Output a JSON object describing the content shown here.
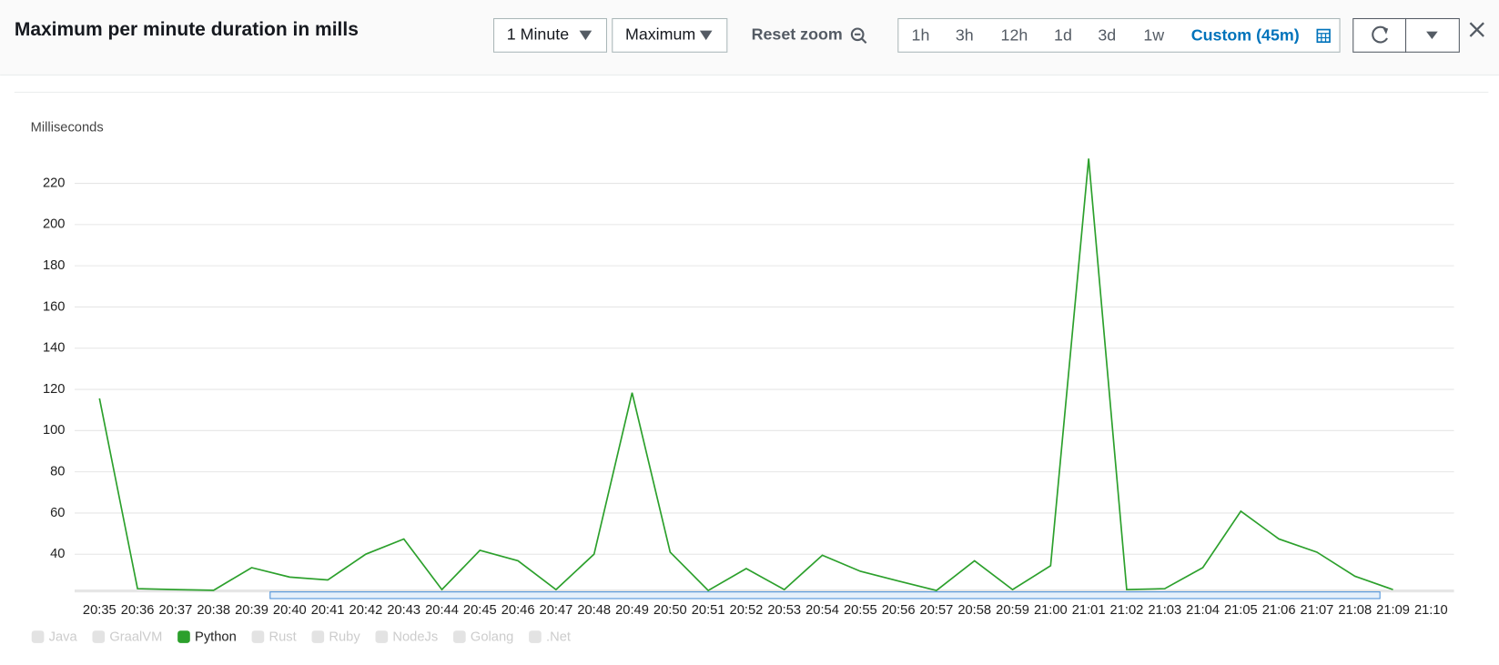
{
  "toolbar": {
    "period": "1 Minute",
    "statistic": "Maximum",
    "reset_zoom": "Reset zoom",
    "ranges": [
      "1h",
      "3h",
      "12h",
      "1d",
      "3d",
      "1w"
    ],
    "custom_range": "Custom (45m)"
  },
  "chart_data": {
    "type": "line",
    "title": "Maximum per minute duration in mills",
    "y_label": "Milliseconds",
    "categories": [
      "20:35",
      "20:36",
      "20:37",
      "20:38",
      "20:39",
      "20:40",
      "20:41",
      "20:42",
      "20:43",
      "20:44",
      "20:45",
      "20:46",
      "20:47",
      "20:48",
      "20:49",
      "20:50",
      "20:51",
      "20:52",
      "20:53",
      "20:54",
      "20:55",
      "20:56",
      "20:57",
      "20:58",
      "20:59",
      "21:00",
      "21:01",
      "21:02",
      "21:03",
      "21:04",
      "21:05",
      "21:06",
      "21:07",
      "21:08",
      "21:09",
      "21:10"
    ],
    "series": [
      {
        "name": "Python",
        "color": "#2ca02c",
        "values": [
          115.6,
          23.3,
          22.8,
          22.5,
          33.5,
          28.9,
          27.5,
          40,
          47.4,
          22.8,
          41.9,
          36.8,
          22.8,
          40,
          118.4,
          41,
          22.4,
          33,
          22.8,
          39.5,
          31.7,
          27,
          22.4,
          36.8,
          22.8,
          34.4,
          232,
          22.8,
          23.3,
          33.5,
          60.9,
          47.4,
          41,
          29.3,
          22.8,
          null
        ]
      }
    ],
    "legend": [
      {
        "name": "Java",
        "active": false
      },
      {
        "name": "GraalVM",
        "active": false
      },
      {
        "name": "Python",
        "active": true
      },
      {
        "name": "Rust",
        "active": false
      },
      {
        "name": "Ruby",
        "active": false
      },
      {
        "name": "NodeJs",
        "active": false
      },
      {
        "name": "Golang",
        "active": false
      },
      {
        "name": ".Net",
        "active": false
      }
    ],
    "ylim": [
      22.4,
      234.8
    ],
    "yticks": [
      40,
      60,
      80,
      100,
      120,
      140,
      160,
      180,
      200,
      220
    ],
    "grid": true
  }
}
